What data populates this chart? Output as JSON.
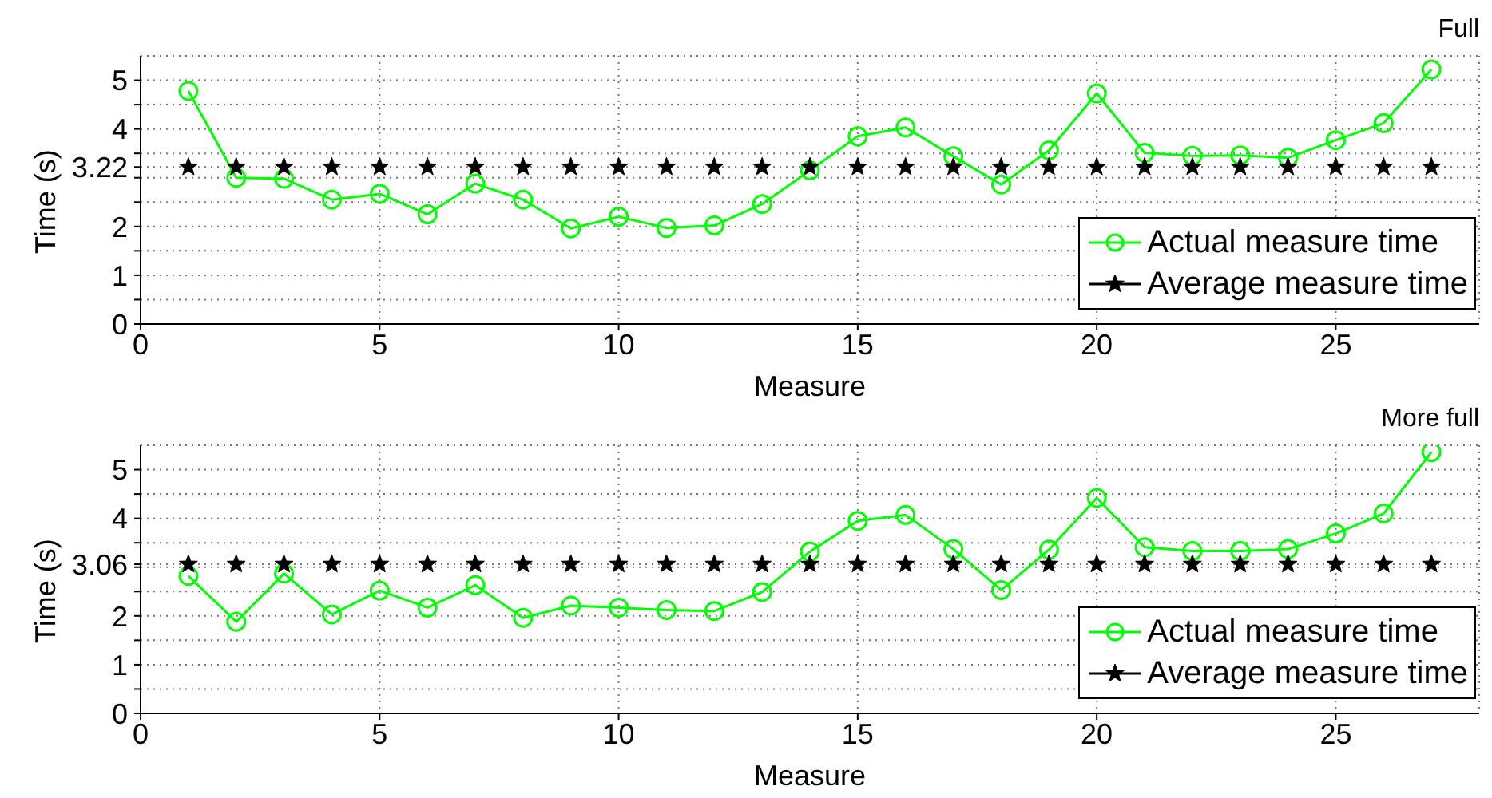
{
  "chart_data": [
    {
      "type": "line",
      "title": "Full",
      "xlabel": "Measure",
      "ylabel": "Time (s)",
      "x": [
        1,
        2,
        3,
        4,
        5,
        6,
        7,
        8,
        9,
        10,
        11,
        12,
        13,
        14,
        15,
        16,
        17,
        18,
        19,
        20,
        21,
        22,
        23,
        24,
        25,
        26,
        27
      ],
      "series": [
        {
          "name": "Actual measure time",
          "color": "#00ff00",
          "marker": "circle",
          "line_style": "solid",
          "values": [
            4.78,
            3.0,
            2.98,
            2.55,
            2.67,
            2.25,
            2.88,
            2.55,
            1.96,
            2.2,
            1.97,
            2.02,
            2.46,
            3.15,
            3.85,
            4.03,
            3.44,
            2.86,
            3.56,
            4.73,
            3.51,
            3.45,
            3.46,
            3.41,
            3.77,
            4.12,
            5.22
          ]
        },
        {
          "name": "Average measure time",
          "type": "scatter",
          "color": "#000000",
          "marker": "star",
          "values": [
            3.22,
            3.22,
            3.22,
            3.22,
            3.22,
            3.22,
            3.22,
            3.22,
            3.22,
            3.22,
            3.22,
            3.22,
            3.22,
            3.22,
            3.22,
            3.22,
            3.22,
            3.22,
            3.22,
            3.22,
            3.22,
            3.22,
            3.22,
            3.22,
            3.22,
            3.22,
            3.22
          ]
        }
      ],
      "xlim": [
        0,
        28
      ],
      "xticks": [
        0,
        5,
        10,
        15,
        20,
        25
      ],
      "ylim": [
        0,
        5.5
      ],
      "yticks": [
        0,
        {
          "value": 0.5,
          "label": null
        },
        1,
        {
          "value": 1.5,
          "label": null
        },
        2,
        {
          "value": 2.5,
          "label": null
        },
        {
          "value": 3,
          "label": null
        },
        3.22,
        {
          "value": 3.5,
          "label": null
        },
        4,
        {
          "value": 4.5,
          "label": null
        },
        5
      ],
      "grid": true,
      "legend": "bottom right"
    },
    {
      "type": "line",
      "title": "More full",
      "xlabel": "Measure",
      "ylabel": "Time (s)",
      "x": [
        1,
        2,
        3,
        4,
        5,
        6,
        7,
        8,
        9,
        10,
        11,
        12,
        13,
        14,
        15,
        16,
        17,
        18,
        19,
        20,
        21,
        22,
        23,
        24,
        25,
        26,
        27
      ],
      "series": [
        {
          "name": "Actual measure time",
          "color": "#00ff00",
          "marker": "circle",
          "line_style": "solid",
          "values": [
            2.82,
            1.88,
            2.87,
            2.03,
            2.52,
            2.17,
            2.63,
            1.96,
            2.21,
            2.17,
            2.12,
            2.1,
            2.49,
            3.32,
            3.95,
            4.07,
            3.37,
            2.53,
            3.36,
            4.42,
            3.41,
            3.33,
            3.33,
            3.37,
            3.69,
            4.1,
            5.36
          ]
        },
        {
          "name": "Average measure time",
          "type": "scatter",
          "color": "#000000",
          "marker": "star",
          "values": [
            3.06,
            3.06,
            3.06,
            3.06,
            3.06,
            3.06,
            3.06,
            3.06,
            3.06,
            3.06,
            3.06,
            3.06,
            3.06,
            3.06,
            3.06,
            3.06,
            3.06,
            3.06,
            3.06,
            3.06,
            3.06,
            3.06,
            3.06,
            3.06,
            3.06,
            3.06,
            3.06
          ]
        }
      ],
      "xlim": [
        0,
        28
      ],
      "xticks": [
        0,
        5,
        10,
        15,
        20,
        25
      ],
      "ylim": [
        0,
        5.5
      ],
      "yticks": [
        0,
        {
          "value": 0.5,
          "label": null
        },
        1,
        {
          "value": 1.5,
          "label": null
        },
        2,
        {
          "value": 2.5,
          "label": null
        },
        {
          "value": 3,
          "label": null
        },
        3.06,
        {
          "value": 3.5,
          "label": null
        },
        4,
        {
          "value": 4.5,
          "label": null
        },
        5
      ],
      "grid": true,
      "legend": "bottom right"
    }
  ]
}
